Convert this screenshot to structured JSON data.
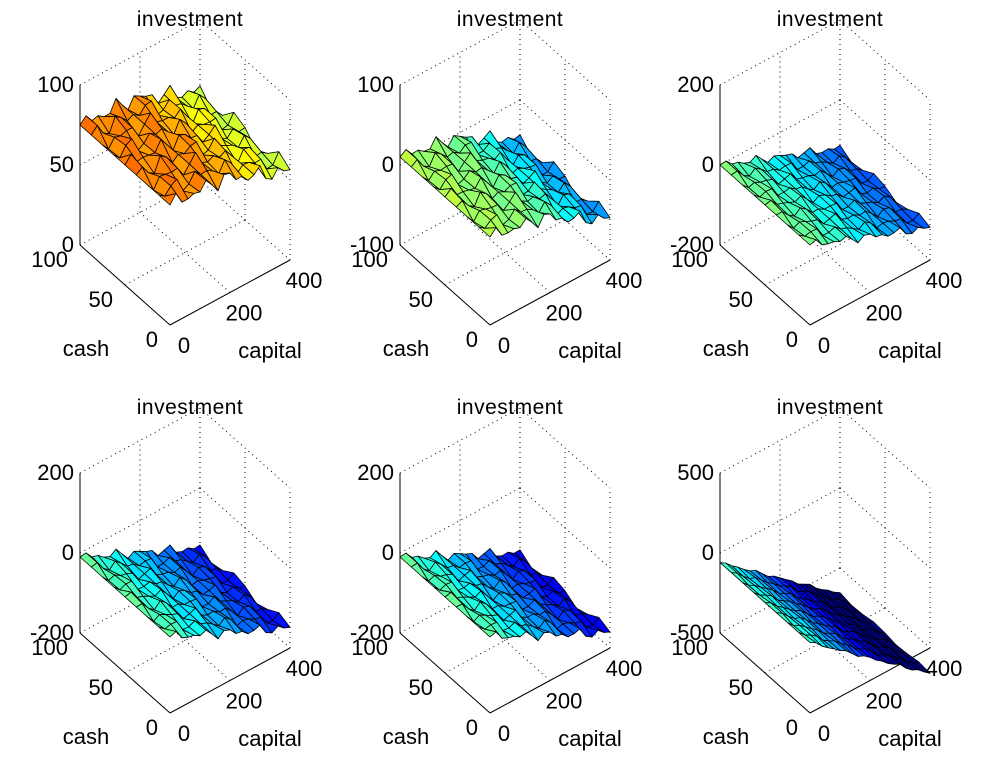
{
  "chart_data": [
    {
      "type": "surface",
      "title": "investment",
      "xlabel": "capital",
      "ylabel": "cash",
      "xticks": [
        "0",
        "200",
        "400"
      ],
      "yticks": [
        "0",
        "50",
        "100"
      ],
      "zticks": [
        "0",
        "50",
        "100"
      ],
      "xlim": [
        0,
        400
      ],
      "ylim": [
        0,
        100
      ],
      "zlim": [
        0,
        100
      ],
      "grid": true,
      "colormap": "jet",
      "surface": {
        "shape": "ridge",
        "level": 75,
        "slope": -0.04,
        "noise": 6
      }
    },
    {
      "type": "surface",
      "title": "investment",
      "xlabel": "capital",
      "ylabel": "cash",
      "xticks": [
        "0",
        "200",
        "400"
      ],
      "yticks": [
        "0",
        "50",
        "100"
      ],
      "zticks": [
        "-100",
        "0",
        "100"
      ],
      "xlim": [
        0,
        400
      ],
      "ylim": [
        0,
        100
      ],
      "zlim": [
        -100,
        100
      ],
      "grid": true,
      "colormap": "jet",
      "surface": {
        "shape": "ridge",
        "level": 10,
        "slope": -0.14,
        "noise": 10
      }
    },
    {
      "type": "surface",
      "title": "investment",
      "xlabel": "capital",
      "ylabel": "cash",
      "xticks": [
        "0",
        "200",
        "400"
      ],
      "yticks": [
        "0",
        "50",
        "100"
      ],
      "zticks": [
        "-200",
        "0",
        "200"
      ],
      "xlim": [
        0,
        400
      ],
      "ylim": [
        0,
        100
      ],
      "zlim": [
        -200,
        200
      ],
      "grid": true,
      "colormap": "jet",
      "surface": {
        "shape": "slope",
        "level": 0,
        "slope": -0.3,
        "noise": 12
      }
    },
    {
      "type": "surface",
      "title": "investment",
      "xlabel": "capital",
      "ylabel": "cash",
      "xticks": [
        "0",
        "200",
        "400"
      ],
      "yticks": [
        "0",
        "50",
        "100"
      ],
      "zticks": [
        "-200",
        "0",
        "200"
      ],
      "xlim": [
        0,
        400
      ],
      "ylim": [
        0,
        100
      ],
      "zlim": [
        -200,
        200
      ],
      "grid": true,
      "colormap": "jet",
      "surface": {
        "shape": "slope",
        "level": -10,
        "slope": -0.35,
        "noise": 14
      }
    },
    {
      "type": "surface",
      "title": "investment",
      "xlabel": "capital",
      "ylabel": "cash",
      "xticks": [
        "0",
        "200",
        "400"
      ],
      "yticks": [
        "0",
        "50",
        "100"
      ],
      "zticks": [
        "-200",
        "0",
        "200"
      ],
      "xlim": [
        0,
        400
      ],
      "ylim": [
        0,
        100
      ],
      "zlim": [
        -200,
        200
      ],
      "grid": true,
      "colormap": "jet",
      "surface": {
        "shape": "slope",
        "level": -10,
        "slope": -0.38,
        "noise": 14
      }
    },
    {
      "type": "surface",
      "title": "investment",
      "xlabel": "capital",
      "ylabel": "cash",
      "xticks": [
        "0",
        "200",
        "400"
      ],
      "yticks": [
        "0",
        "50",
        "100"
      ],
      "zticks": [
        "-500",
        "0",
        "500"
      ],
      "xlim": [
        0,
        400
      ],
      "ylim": [
        0,
        100
      ],
      "zlim": [
        -500,
        500
      ],
      "grid": true,
      "colormap": "jet",
      "surface": {
        "shape": "slope",
        "level": -60,
        "slope": -0.6,
        "noise": 10
      }
    }
  ]
}
